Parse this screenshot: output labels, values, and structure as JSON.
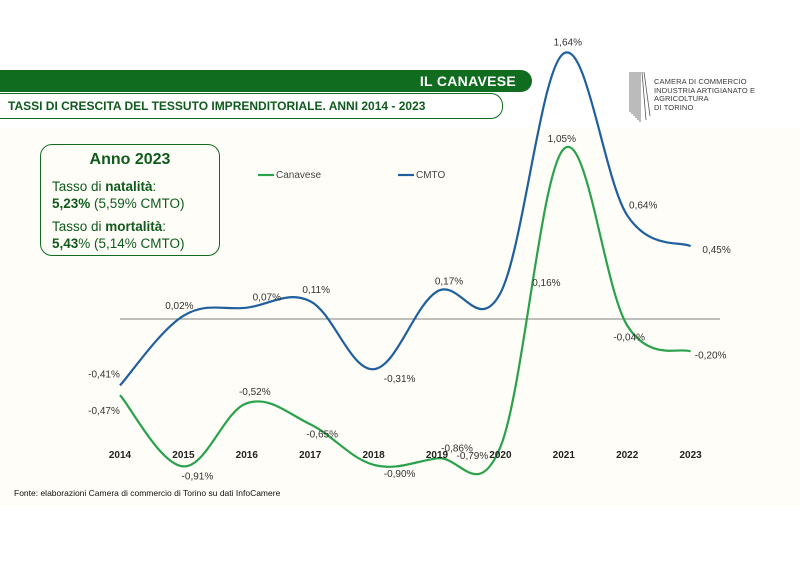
{
  "header": {
    "banner_title": "IL CANAVESE",
    "subtitle": "TASSI DI CRESCITA DEL TESSUTO IMPRENDITORIALE. ANNI 2014 - 2023"
  },
  "logo": {
    "line1": "CAMERA DI COMMERCIO",
    "line2": "INDUSTRIA ARTIGIANATO E AGRICOLTURA",
    "line3": "DI TORINO"
  },
  "info_box": {
    "title": "Anno 2023",
    "natalita_prefix": "Tasso di ",
    "natalita_word": "natalità",
    "natalita_suffix": ":",
    "natalita_value": "5,23%",
    "natalita_cmto": " (5,59% CMTO)",
    "mortalita_prefix": "Tasso di ",
    "mortalita_word": "mortalità",
    "mortalita_suffix": ":",
    "mortalita_value": "5,43",
    "mortalita_cmto": "% (5,14% CMTO)"
  },
  "source": "Fonte: elaborazioni Camera di commercio di Torino su dati InfoCamere",
  "colors": {
    "green": "#106d1f",
    "canavese": "#2aa24c",
    "cmto": "#1f5f9e"
  },
  "chart_data": {
    "type": "line",
    "title": "TASSI DI CRESCITA DEL TESSUTO IMPRENDITORIALE. ANNI 2014 - 2023",
    "x": [
      "2014",
      "2015",
      "2016",
      "2017",
      "2018",
      "2019",
      "2020",
      "2021",
      "2022",
      "2023"
    ],
    "series": [
      {
        "name": "Canavese",
        "values": [
          -0.47,
          -0.91,
          -0.52,
          -0.65,
          -0.9,
          -0.86,
          -0.79,
          1.05,
          -0.04,
          -0.2
        ],
        "labels": [
          "-0,47%",
          "-0,91%",
          "-0,52%",
          "-0,65%",
          "-0,90%",
          "-0,86%",
          "-0,79%",
          "1,05%",
          "-0,04%",
          "-0,20%"
        ]
      },
      {
        "name": "CMTO",
        "values": [
          -0.41,
          0.02,
          0.07,
          0.11,
          -0.31,
          0.17,
          0.16,
          1.64,
          0.64,
          0.45
        ],
        "labels": [
          "-0,41%",
          "0,02%",
          "0,07%",
          "0,11%",
          "-0,31%",
          "0,17%",
          "0,16%",
          "1,64%",
          "0,64%",
          "0,45%"
        ]
      }
    ],
    "xlabel": "",
    "ylabel": "",
    "ylim": [
      -1.0,
      1.8
    ],
    "legend_position": "top",
    "grid": false
  }
}
